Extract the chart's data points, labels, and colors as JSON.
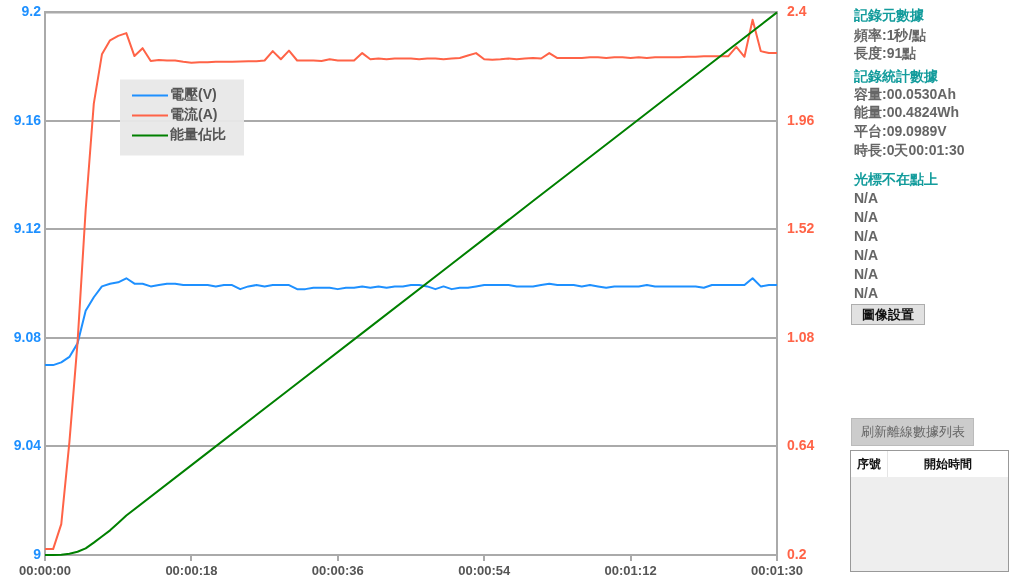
{
  "chart_data": {
    "type": "line",
    "x": [
      0,
      1,
      2,
      3,
      4,
      5,
      6,
      7,
      8,
      9,
      10,
      11,
      12,
      13,
      14,
      15,
      16,
      17,
      18,
      19,
      20,
      21,
      22,
      23,
      24,
      25,
      26,
      27,
      28,
      29,
      30,
      31,
      32,
      33,
      34,
      35,
      36,
      37,
      38,
      39,
      40,
      41,
      42,
      43,
      44,
      45,
      46,
      47,
      48,
      49,
      50,
      51,
      52,
      53,
      54,
      55,
      56,
      57,
      58,
      59,
      60,
      61,
      62,
      63,
      64,
      65,
      66,
      67,
      68,
      69,
      70,
      71,
      72,
      73,
      74,
      75,
      76,
      77,
      78,
      79,
      80,
      81,
      82,
      83,
      84,
      85,
      86,
      87,
      88,
      89,
      90
    ],
    "series": [
      {
        "name": "電壓(V)",
        "color": "#1e90ff",
        "axis": "y",
        "values": [
          9.07,
          9.07,
          9.071,
          9.073,
          9.078,
          9.09,
          9.095,
          9.099,
          9.1,
          9.1005,
          9.102,
          9.1,
          9.1,
          9.099,
          9.0995,
          9.1,
          9.1,
          9.0995,
          9.0995,
          9.0995,
          9.0995,
          9.099,
          9.0995,
          9.0995,
          9.098,
          9.099,
          9.0995,
          9.099,
          9.0995,
          9.0995,
          9.0995,
          9.098,
          9.098,
          9.0985,
          9.0985,
          9.0985,
          9.098,
          9.0985,
          9.0985,
          9.099,
          9.0985,
          9.099,
          9.0985,
          9.099,
          9.099,
          9.0995,
          9.0995,
          9.099,
          9.098,
          9.099,
          9.098,
          9.0985,
          9.0985,
          9.099,
          9.0995,
          9.0995,
          9.0995,
          9.0995,
          9.099,
          9.099,
          9.099,
          9.0995,
          9.1,
          9.0995,
          9.0995,
          9.0995,
          9.099,
          9.0995,
          9.099,
          9.0985,
          9.099,
          9.099,
          9.099,
          9.099,
          9.0995,
          9.099,
          9.099,
          9.099,
          9.099,
          9.099,
          9.099,
          9.0985,
          9.0995,
          9.0995,
          9.0995,
          9.0995,
          9.0995,
          9.102,
          9.099,
          9.0995,
          9.0995
        ]
      },
      {
        "name": "電流(A)",
        "color": "#ff6347",
        "axis": "y2",
        "values": [
          0.224,
          0.224,
          0.325,
          0.658,
          1.061,
          1.6,
          2.03,
          2.23,
          2.287,
          2.305,
          2.316,
          2.223,
          2.255,
          2.203,
          2.207,
          2.205,
          2.205,
          2.2,
          2.196,
          2.198,
          2.198,
          2.2,
          2.2,
          2.2,
          2.201,
          2.202,
          2.202,
          2.205,
          2.243,
          2.21,
          2.245,
          2.205,
          2.205,
          2.205,
          2.203,
          2.21,
          2.205,
          2.205,
          2.205,
          2.235,
          2.21,
          2.213,
          2.21,
          2.213,
          2.213,
          2.213,
          2.21,
          2.213,
          2.213,
          2.21,
          2.213,
          2.215,
          2.225,
          2.235,
          2.21,
          2.208,
          2.21,
          2.213,
          2.21,
          2.213,
          2.215,
          2.213,
          2.235,
          2.215,
          2.215,
          2.215,
          2.215,
          2.218,
          2.218,
          2.215,
          2.218,
          2.218,
          2.215,
          2.218,
          2.215,
          2.218,
          2.218,
          2.218,
          2.218,
          2.22,
          2.22,
          2.222,
          2.222,
          2.222,
          2.222,
          2.26,
          2.22,
          2.37,
          2.243,
          2.235,
          2.235
        ]
      },
      {
        "name": "能量佔比",
        "color": "#008000",
        "axis": "y2",
        "x": [
          0,
          1,
          2,
          3,
          4,
          5,
          6,
          7,
          8,
          9,
          10,
          20,
          30,
          40,
          50,
          60,
          70,
          80,
          90
        ],
        "values": [
          0.2,
          0.2,
          0.201,
          0.205,
          0.213,
          0.227,
          0.25,
          0.275,
          0.3,
          0.33,
          0.36,
          0.615,
          0.87,
          1.125,
          1.38,
          1.635,
          1.89,
          2.145,
          2.4
        ]
      }
    ],
    "xlim": [
      0,
      90
    ],
    "xticks": [
      {
        "value": 0,
        "label": "00:00:00"
      },
      {
        "value": 18,
        "label": "00:00:18"
      },
      {
        "value": 36,
        "label": "00:00:36"
      },
      {
        "value": 54,
        "label": "00:00:54"
      },
      {
        "value": 72,
        "label": "00:01:12"
      },
      {
        "value": 90,
        "label": "00:01:30"
      }
    ],
    "ylim": [
      9,
      9.2
    ],
    "yticks": [
      9,
      9.04,
      9.08,
      9.12,
      9.16,
      9.2
    ],
    "y2lim": [
      0.2,
      2.4
    ],
    "y2ticks": [
      0.2,
      0.64,
      1.08,
      1.52,
      1.96,
      2.4
    ],
    "grid": "y",
    "legend": "top left",
    "marker": "none",
    "line_style": "solid",
    "annotations": [
      "記錄元數據",
      "頻率:1秒/點",
      "長度:91點",
      "記錄統計數據",
      "容量:00.0530Ah",
      "能量:00.4824Wh",
      "平台:09.0989V",
      "時長:0天00:01:30",
      "光標不在點上",
      "N/A",
      "N/A",
      "N/A",
      "N/A",
      "N/A",
      "N/A",
      "圖像設置",
      "刷新離線數據列表",
      "序號",
      "開始時間"
    ]
  }
}
